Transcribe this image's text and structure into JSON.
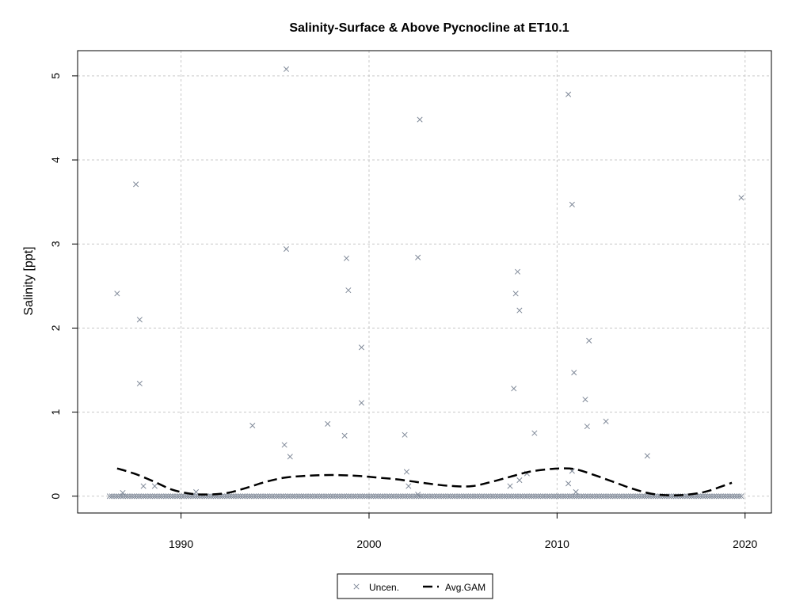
{
  "chart_data": {
    "type": "scatter",
    "title": "Salinity-Surface & Above Pycnocline at ET10.1",
    "xlabel": "",
    "ylabel": "Salinity [ppt]",
    "xlim": [
      1984.5,
      2021.4
    ],
    "ylim": [
      -0.2,
      5.3
    ],
    "x_ticks": [
      1990,
      2000,
      2010,
      2020
    ],
    "y_ticks": [
      0,
      1,
      2,
      3,
      4,
      5
    ],
    "grid": true,
    "legend": {
      "position": "bottom-center",
      "entries": [
        "Uncen.",
        "Avg.GAM"
      ]
    },
    "colors": {
      "points": "#808a99",
      "gam": "#000000",
      "grid": "#c8c8c8"
    },
    "series": [
      {
        "name": "Uncen.",
        "kind": "points",
        "points": [
          [
            1986.6,
            2.41
          ],
          [
            1987.6,
            3.71
          ],
          [
            1987.8,
            2.1
          ],
          [
            1987.8,
            1.34
          ],
          [
            1988.0,
            0.12
          ],
          [
            1988.6,
            0.12
          ],
          [
            1990.8,
            0.05
          ],
          [
            1993.8,
            0.84
          ],
          [
            1995.6,
            5.08
          ],
          [
            1995.6,
            2.94
          ],
          [
            1995.5,
            0.61
          ],
          [
            1995.8,
            0.47
          ],
          [
            1997.8,
            0.86
          ],
          [
            1998.7,
            0.72
          ],
          [
            1998.8,
            2.83
          ],
          [
            1998.9,
            2.45
          ],
          [
            1999.6,
            1.77
          ],
          [
            1999.6,
            1.11
          ],
          [
            2001.9,
            0.73
          ],
          [
            2002.0,
            0.29
          ],
          [
            2002.1,
            0.12
          ],
          [
            2002.6,
            2.84
          ],
          [
            2002.7,
            4.48
          ],
          [
            2002.6,
            0.02
          ],
          [
            2007.5,
            0.12
          ],
          [
            2007.7,
            1.28
          ],
          [
            2007.8,
            2.41
          ],
          [
            2007.9,
            2.67
          ],
          [
            2008.0,
            2.21
          ],
          [
            2008.0,
            0.19
          ],
          [
            2008.8,
            0.75
          ],
          [
            2008.4,
            0.27
          ],
          [
            2010.6,
            4.78
          ],
          [
            2010.8,
            3.47
          ],
          [
            2010.6,
            0.15
          ],
          [
            2010.8,
            0.3
          ],
          [
            2010.9,
            1.47
          ],
          [
            2011.0,
            0.05
          ],
          [
            2011.5,
            1.15
          ],
          [
            2011.6,
            0.83
          ],
          [
            2011.7,
            1.85
          ],
          [
            2012.6,
            0.89
          ],
          [
            2014.8,
            0.48
          ],
          [
            2019.8,
            3.55
          ],
          [
            1986.9,
            0.04
          ]
        ],
        "zeros": {
          "from": 1986.2,
          "to": 2019.9,
          "step": 0.12,
          "value": 0
        }
      },
      {
        "name": "Avg.GAM",
        "kind": "line",
        "points": [
          [
            1986.6,
            0.33
          ],
          [
            1987.5,
            0.27
          ],
          [
            1988.5,
            0.18
          ],
          [
            1989.5,
            0.08
          ],
          [
            1990.5,
            0.03
          ],
          [
            1991.5,
            0.02
          ],
          [
            1992.5,
            0.04
          ],
          [
            1993.5,
            0.1
          ],
          [
            1994.5,
            0.17
          ],
          [
            1995.5,
            0.22
          ],
          [
            1996.5,
            0.24
          ],
          [
            1997.5,
            0.25
          ],
          [
            1998.5,
            0.25
          ],
          [
            1999.5,
            0.24
          ],
          [
            2000.5,
            0.22
          ],
          [
            2001.5,
            0.2
          ],
          [
            2002.5,
            0.17
          ],
          [
            2003.5,
            0.14
          ],
          [
            2004.5,
            0.12
          ],
          [
            2005.5,
            0.12
          ],
          [
            2006.5,
            0.17
          ],
          [
            2007.5,
            0.23
          ],
          [
            2008.5,
            0.29
          ],
          [
            2009.5,
            0.32
          ],
          [
            2010.2,
            0.33
          ],
          [
            2011.0,
            0.32
          ],
          [
            2012.0,
            0.25
          ],
          [
            2013.0,
            0.17
          ],
          [
            2014.0,
            0.09
          ],
          [
            2015.0,
            0.03
          ],
          [
            2016.0,
            0.01
          ],
          [
            2017.0,
            0.02
          ],
          [
            2018.0,
            0.06
          ],
          [
            2019.3,
            0.16
          ]
        ]
      }
    ]
  }
}
